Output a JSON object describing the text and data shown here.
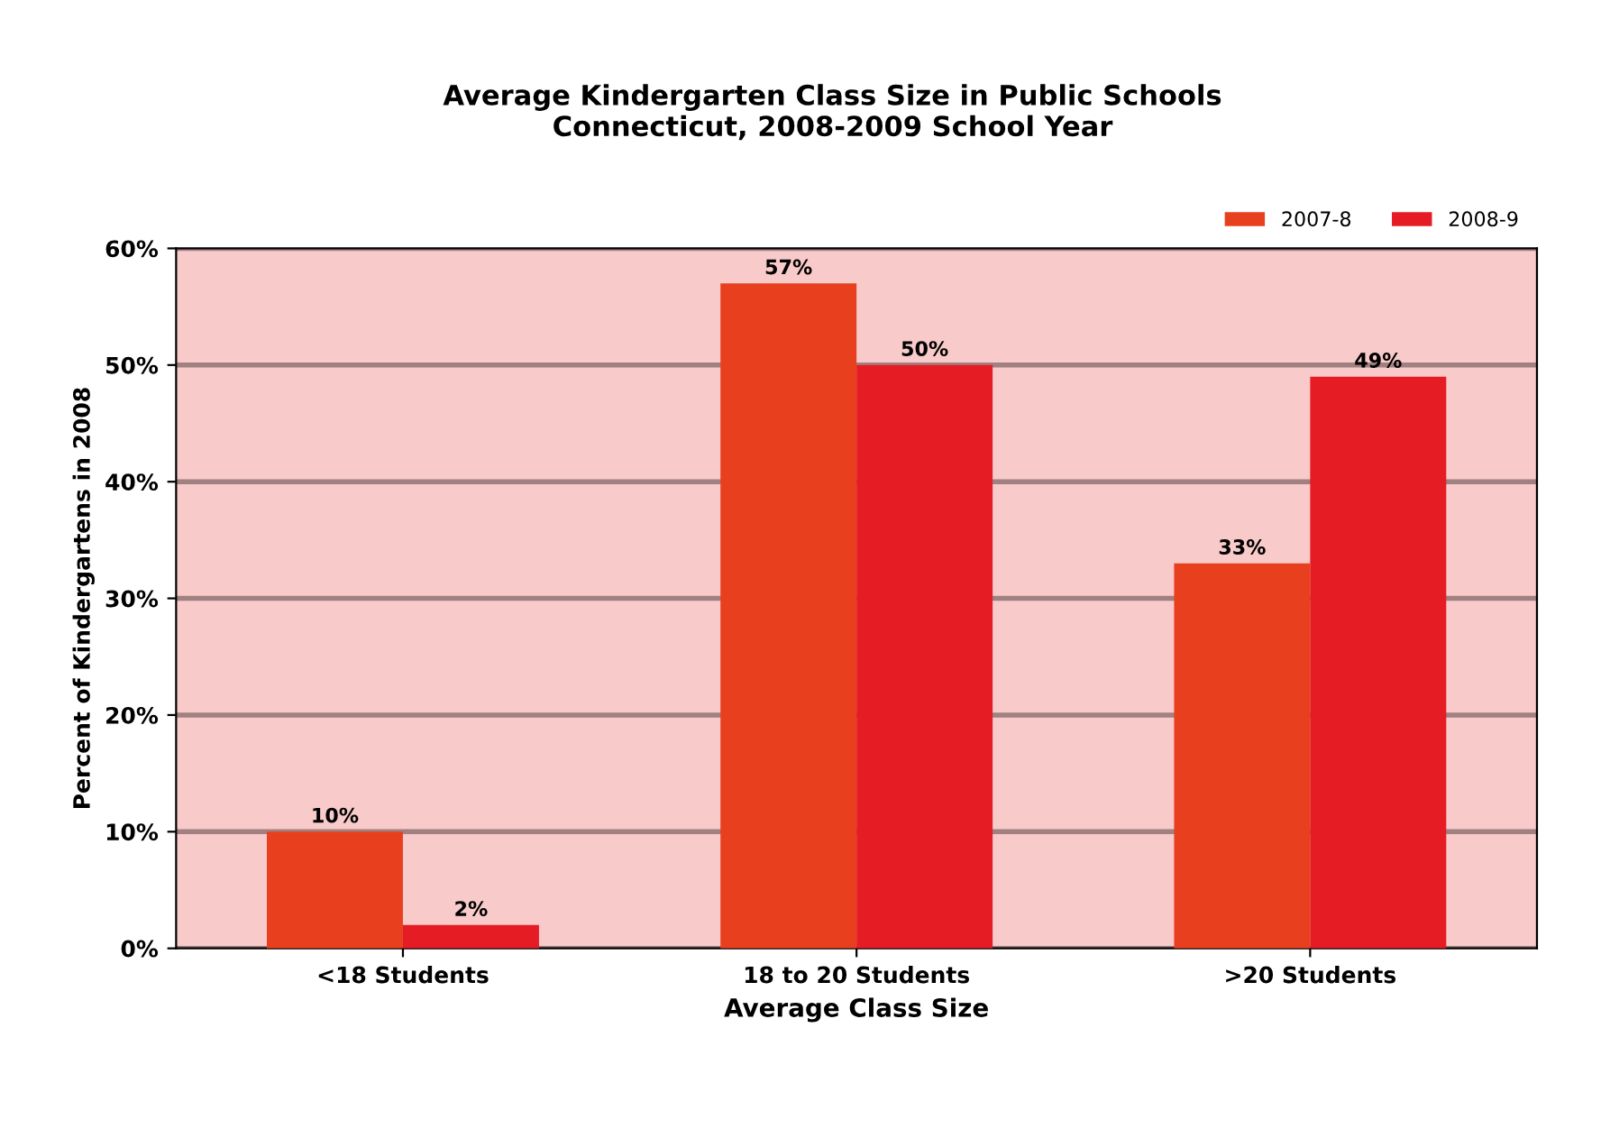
{
  "chart_data": {
    "type": "bar",
    "title": "Average Kindergarten Class Size in Public Schools\nConnecticut, 2008-2009 School Year",
    "xlabel": "Average Class Size",
    "ylabel": "Percent of Kindergartens in 2008",
    "categories": [
      "<18 Students",
      "18 to 20 Students",
      ">20 Students"
    ],
    "series": [
      {
        "name": "2007-8",
        "color": "#e8401f",
        "values": [
          10,
          57,
          33
        ],
        "value_labels": [
          "10%",
          "57%",
          "33%"
        ]
      },
      {
        "name": "2008-9",
        "color": "#e61c25",
        "values": [
          2,
          50,
          49
        ],
        "value_labels": [
          "2%",
          "50%",
          "49%"
        ]
      }
    ],
    "ylim": [
      0,
      60
    ],
    "yticks": [
      {
        "value": 0,
        "label": "0%"
      },
      {
        "value": 10,
        "label": "10%"
      },
      {
        "value": 20,
        "label": "20%"
      },
      {
        "value": 30,
        "label": "30%"
      },
      {
        "value": 40,
        "label": "40%"
      },
      {
        "value": 50,
        "label": "50%"
      },
      {
        "value": 60,
        "label": "60%"
      }
    ],
    "grid": "y",
    "legend": "top right"
  }
}
